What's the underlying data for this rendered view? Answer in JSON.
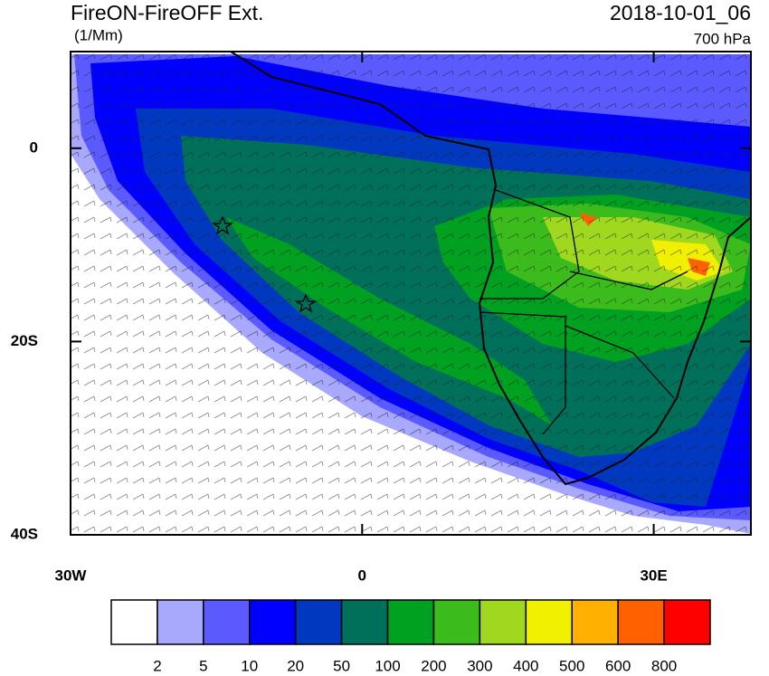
{
  "title": "FireON-FireOFF Ext.",
  "units": "(1/Mm)",
  "time": "2018-10-01_06",
  "level": "700 hPa",
  "map": {
    "lonlim": [
      -30,
      40
    ],
    "latlim": [
      -40,
      10
    ],
    "xticks": [
      {
        "value": -30,
        "label": "30W"
      },
      {
        "value": 0,
        "label": "0"
      },
      {
        "value": 30,
        "label": "30E"
      }
    ],
    "yticks": [
      {
        "value": 0,
        "label": "0"
      },
      {
        "value": -20,
        "label": "20S"
      },
      {
        "value": -40,
        "label": "40S"
      }
    ]
  },
  "colorbar": {
    "levels": [
      2,
      5,
      10,
      20,
      50,
      100,
      200,
      300,
      400,
      500,
      600,
      800
    ],
    "colors": [
      "#ffffff",
      "#a8a8fc",
      "#5a5aff",
      "#0000ff",
      "#0038c0",
      "#00705a",
      "#00a020",
      "#3cbc1c",
      "#a0d820",
      "#f0f000",
      "#ffb000",
      "#ff6000",
      "#ff0000"
    ]
  }
}
